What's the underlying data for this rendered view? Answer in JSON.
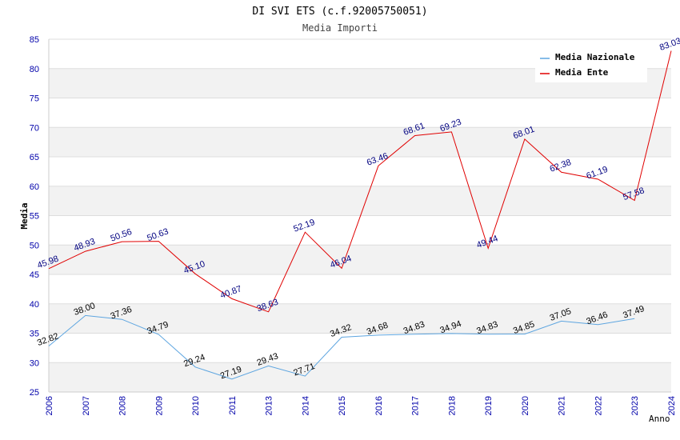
{
  "chart_data": {
    "type": "line",
    "title": "DI SVI ETS (c.f.92005750051)",
    "subtitle": "Media Importi",
    "ylabel": "Media",
    "xlabel": "Anno",
    "ylim": [
      25,
      85
    ],
    "yticks": [
      25,
      30,
      35,
      40,
      45,
      50,
      55,
      60,
      65,
      70,
      75,
      80,
      85
    ],
    "categories": [
      "2006",
      "2007",
      "2008",
      "2009",
      "2010",
      "2011",
      "2013",
      "2014",
      "2015",
      "2016",
      "2017",
      "2018",
      "2019",
      "2020",
      "2021",
      "2022",
      "2023",
      "2024"
    ],
    "legend_position": "top-right",
    "series": [
      {
        "name": "Media Nazionale",
        "color": "#5da5e0",
        "label_color": "#000000",
        "values": [
          32.82,
          38.0,
          37.36,
          34.79,
          29.24,
          27.19,
          29.43,
          27.71,
          34.32,
          34.68,
          34.83,
          34.94,
          34.83,
          34.85,
          37.05,
          36.46,
          37.49,
          null
        ],
        "labels": [
          "32.82",
          "38.00",
          "37.36",
          "34.79",
          "29.24",
          "27.19",
          "29.43",
          "27.71",
          "34.32",
          "34.68",
          "34.83",
          "34.94",
          "34.83",
          "34.85",
          "37.05",
          "36.46",
          "37.49",
          null
        ]
      },
      {
        "name": "Media Ente",
        "color": "#e00000",
        "label_color": "#000080",
        "values": [
          45.98,
          48.93,
          50.56,
          50.63,
          45.1,
          40.87,
          38.63,
          52.19,
          46.04,
          63.46,
          68.61,
          69.23,
          49.44,
          68.01,
          62.38,
          61.19,
          57.58,
          83.03
        ],
        "labels": [
          "45.98",
          "48.93",
          "50.56",
          "50.63",
          "45.10",
          "40.87",
          "38.63",
          "52.19",
          "46.04",
          "63.46",
          "68.61",
          "69.23",
          "49.44",
          "68.01",
          "62.38",
          "61.19",
          "57.58",
          "83.03"
        ]
      }
    ]
  }
}
